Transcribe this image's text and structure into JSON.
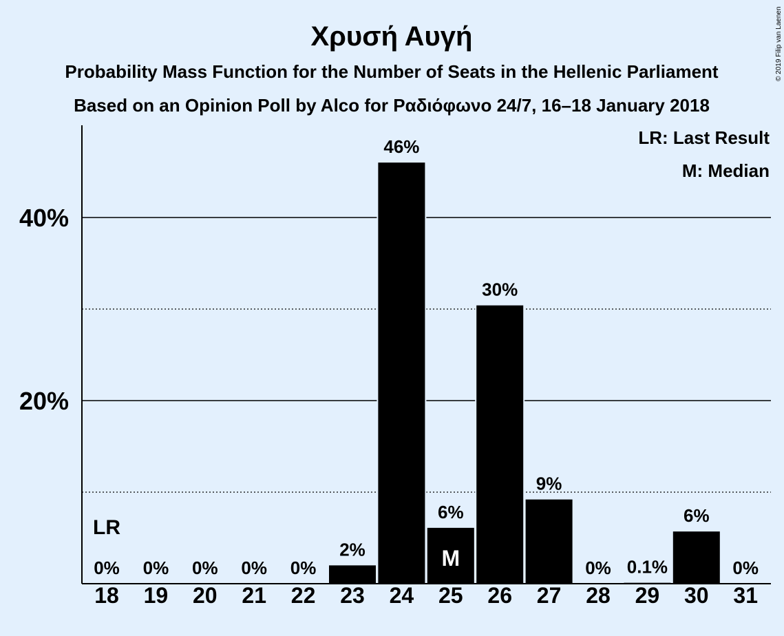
{
  "copyright": "© 2019 Filip van Laenen",
  "chart_data": {
    "type": "bar",
    "title": "Χρυσή Αυγή",
    "subtitle_line1": "Probability Mass Function for the Number of Seats in the Hellenic Parliament",
    "subtitle_line2": "Based on an Opinion Poll by Alco for Ραδιόφωνο 24/7, 16–18 January 2018",
    "categories": [
      "18",
      "19",
      "20",
      "21",
      "22",
      "23",
      "24",
      "25",
      "26",
      "27",
      "28",
      "29",
      "30",
      "31"
    ],
    "values": [
      0,
      0,
      0,
      0,
      0,
      2.0,
      46.0,
      6.1,
      30.4,
      9.2,
      0,
      0.1,
      5.7,
      0
    ],
    "value_labels": [
      "0%",
      "0%",
      "0%",
      "0%",
      "0%",
      "2%",
      "46%",
      "6%",
      "30%",
      "9%",
      "0%",
      "0.1%",
      "6%",
      "0%"
    ],
    "ylim": [
      0,
      50
    ],
    "y_ticks": [
      {
        "value": 20,
        "label": "20%",
        "style": "solid"
      },
      {
        "value": 40,
        "label": "40%",
        "style": "solid"
      }
    ],
    "y_minor_gridlines": [
      10,
      30
    ],
    "bar_color": "#000000",
    "background_color": "#e3f0fd",
    "last_result": {
      "category": "18",
      "marker": "LR"
    },
    "median": {
      "category": "25",
      "marker": "M"
    },
    "legend": {
      "position": "top-right",
      "entries": [
        "LR: Last Result",
        "M: Median"
      ]
    }
  }
}
